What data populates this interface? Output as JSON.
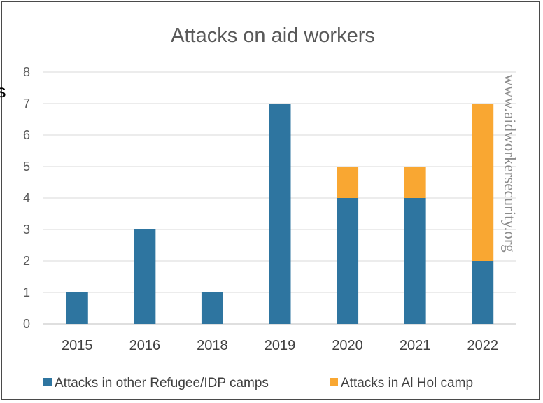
{
  "chart_data": {
    "type": "bar",
    "stacked": true,
    "title": "Attacks on aid workers",
    "categories": [
      "2015",
      "2016",
      "2018",
      "2019",
      "2020",
      "2021",
      "2022"
    ],
    "series": [
      {
        "name": "Attacks in other Refugee/IDP camps",
        "values": [
          1,
          3,
          1,
          7,
          4,
          4,
          2
        ],
        "color": "#2e75a0"
      },
      {
        "name": "Attacks in Al Hol camp",
        "values": [
          0,
          0,
          0,
          0,
          1,
          1,
          5
        ],
        "color": "#f9a732"
      }
    ],
    "ylim": [
      0,
      8
    ],
    "yticks": [
      "0",
      "1",
      "2",
      "3",
      "4",
      "5",
      "6",
      "7",
      "8"
    ],
    "grid": true,
    "legend_position": "bottom",
    "watermark": "www.aidworkersecurity.org",
    "cut_off_text": "s"
  }
}
